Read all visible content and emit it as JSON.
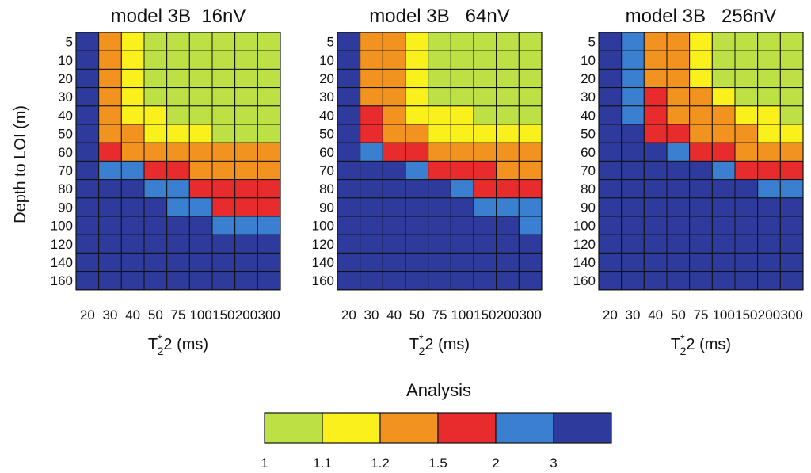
{
  "chart_data": [
    {
      "type": "heatmap",
      "title": "model 3B  16nV",
      "xlabel": "T",
      "xlabel_sup": "*",
      "xlabel_sub": "2",
      "xlabel_rest": "2 (ms)",
      "ylabel": "Depth to LOI (m)",
      "x_categories": [
        "20",
        "30",
        "40",
        "50",
        "75",
        "100",
        "150",
        "200",
        "300"
      ],
      "y_categories": [
        "5",
        "10",
        "20",
        "30",
        "40",
        "50",
        "60",
        "70",
        "80",
        "90",
        "100",
        "120",
        "140",
        "160"
      ],
      "values": [
        [
          3,
          1.2,
          1.1,
          1,
          1,
          1,
          1,
          1,
          1
        ],
        [
          3,
          1.2,
          1.1,
          1,
          1,
          1,
          1,
          1,
          1
        ],
        [
          3,
          1.2,
          1.1,
          1,
          1,
          1,
          1,
          1,
          1
        ],
        [
          3,
          1.2,
          1.1,
          1,
          1,
          1,
          1,
          1,
          1
        ],
        [
          3,
          1.2,
          1.1,
          1.1,
          1,
          1,
          1,
          1,
          1
        ],
        [
          3,
          1.2,
          1.2,
          1.1,
          1.1,
          1.1,
          1,
          1,
          1
        ],
        [
          3,
          1.5,
          1.2,
          1.2,
          1.2,
          1.2,
          1.2,
          1.2,
          1.2
        ],
        [
          3,
          2,
          2,
          1.5,
          1.5,
          1.2,
          1.2,
          1.2,
          1.2
        ],
        [
          3,
          3,
          3,
          2,
          2,
          1.5,
          1.5,
          1.5,
          1.5
        ],
        [
          3,
          3,
          3,
          3,
          2,
          2,
          1.5,
          1.5,
          1.5
        ],
        [
          3,
          3,
          3,
          3,
          3,
          3,
          2,
          2,
          2
        ],
        [
          3,
          3,
          3,
          3,
          3,
          3,
          3,
          3,
          3
        ],
        [
          3,
          3,
          3,
          3,
          3,
          3,
          3,
          3,
          3
        ],
        [
          3,
          3,
          3,
          3,
          3,
          3,
          3,
          3,
          3
        ]
      ]
    },
    {
      "type": "heatmap",
      "title": "model 3B   64nV",
      "xlabel": "T",
      "xlabel_sup": "*",
      "xlabel_sub": "2",
      "xlabel_rest": "2 (ms)",
      "ylabel": "",
      "x_categories": [
        "20",
        "30",
        "40",
        "50",
        "75",
        "100",
        "150",
        "200",
        "300"
      ],
      "y_categories": [
        "5",
        "10",
        "20",
        "30",
        "40",
        "50",
        "60",
        "70",
        "80",
        "90",
        "100",
        "120",
        "140",
        "160"
      ],
      "values": [
        [
          3,
          1.2,
          1.2,
          1.1,
          1,
          1,
          1,
          1,
          1
        ],
        [
          3,
          1.2,
          1.2,
          1.1,
          1,
          1,
          1,
          1,
          1
        ],
        [
          3,
          1.2,
          1.2,
          1.1,
          1,
          1,
          1,
          1,
          1
        ],
        [
          3,
          1.2,
          1.2,
          1.1,
          1,
          1,
          1,
          1,
          1
        ],
        [
          3,
          1.5,
          1.2,
          1.1,
          1.1,
          1.1,
          1,
          1,
          1
        ],
        [
          3,
          1.5,
          1.2,
          1.2,
          1.1,
          1.1,
          1.1,
          1.1,
          1.1
        ],
        [
          3,
          2,
          1.5,
          1.5,
          1.2,
          1.2,
          1.2,
          1.2,
          1.2
        ],
        [
          3,
          3,
          3,
          2,
          1.5,
          1.5,
          1.5,
          1.2,
          1.2
        ],
        [
          3,
          3,
          3,
          3,
          3,
          2,
          1.5,
          1.5,
          1.5
        ],
        [
          3,
          3,
          3,
          3,
          3,
          3,
          2,
          2,
          2
        ],
        [
          3,
          3,
          3,
          3,
          3,
          3,
          3,
          3,
          2
        ],
        [
          3,
          3,
          3,
          3,
          3,
          3,
          3,
          3,
          3
        ],
        [
          3,
          3,
          3,
          3,
          3,
          3,
          3,
          3,
          3
        ],
        [
          3,
          3,
          3,
          3,
          3,
          3,
          3,
          3,
          3
        ]
      ]
    },
    {
      "type": "heatmap",
      "title": "model 3B   256nV",
      "xlabel": "T",
      "xlabel_sup": "*",
      "xlabel_sub": "2",
      "xlabel_rest": "2 (ms)",
      "ylabel": "",
      "x_categories": [
        "20",
        "30",
        "40",
        "50",
        "75",
        "100",
        "150",
        "200",
        "300"
      ],
      "y_categories": [
        "5",
        "10",
        "20",
        "30",
        "40",
        "50",
        "60",
        "70",
        "80",
        "90",
        "100",
        "120",
        "140",
        "160"
      ],
      "values": [
        [
          3,
          2,
          1.2,
          1.2,
          1.1,
          1,
          1,
          1,
          1
        ],
        [
          3,
          2,
          1.2,
          1.2,
          1.1,
          1,
          1,
          1,
          1
        ],
        [
          3,
          2,
          1.2,
          1.2,
          1.1,
          1,
          1,
          1,
          1
        ],
        [
          3,
          2,
          1.5,
          1.2,
          1.2,
          1.1,
          1,
          1,
          1
        ],
        [
          3,
          2,
          1.5,
          1.2,
          1.2,
          1.2,
          1.1,
          1.1,
          1
        ],
        [
          3,
          3,
          1.5,
          1.5,
          1.2,
          1.2,
          1.2,
          1.1,
          1.1
        ],
        [
          3,
          3,
          3,
          2,
          1.5,
          1.5,
          1.2,
          1.2,
          1.2
        ],
        [
          3,
          3,
          3,
          3,
          3,
          2,
          1.5,
          1.5,
          1.5
        ],
        [
          3,
          3,
          3,
          3,
          3,
          3,
          3,
          2,
          2
        ],
        [
          3,
          3,
          3,
          3,
          3,
          3,
          3,
          3,
          3
        ],
        [
          3,
          3,
          3,
          3,
          3,
          3,
          3,
          3,
          3
        ],
        [
          3,
          3,
          3,
          3,
          3,
          3,
          3,
          3,
          3
        ],
        [
          3,
          3,
          3,
          3,
          3,
          3,
          3,
          3,
          3
        ],
        [
          3,
          3,
          3,
          3,
          3,
          3,
          3,
          3,
          3
        ]
      ]
    }
  ],
  "legend": {
    "title": "Analysis",
    "ticks": [
      "1",
      "1.1",
      "1.2",
      "1.5",
      "2",
      "3"
    ],
    "levels": [
      1,
      1.1,
      1.2,
      1.5,
      2,
      3
    ],
    "colors": [
      "#bde145",
      "#f9f01c",
      "#f2931f",
      "#e82c2e",
      "#3a7fd0",
      "#2e3b9c"
    ]
  }
}
